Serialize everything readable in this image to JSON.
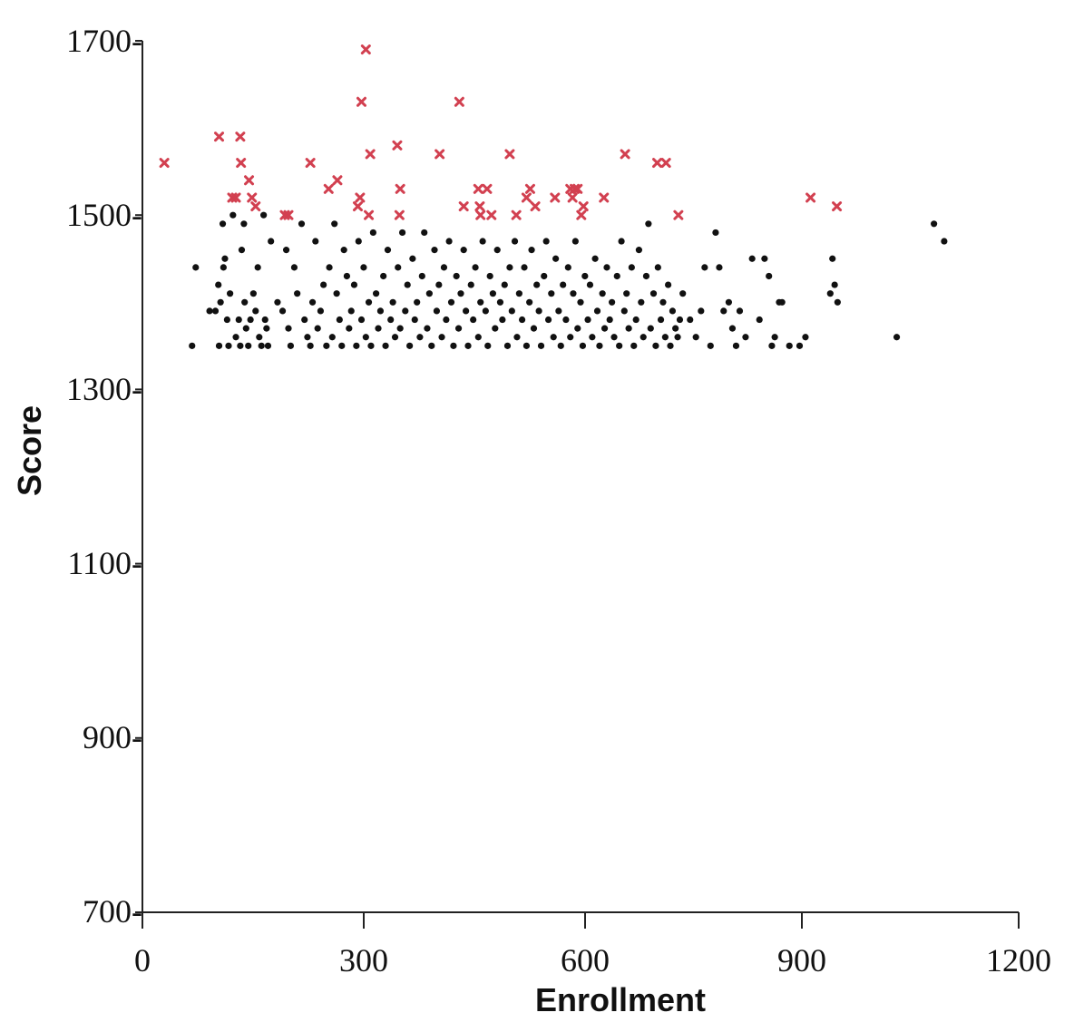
{
  "chart_data": {
    "type": "scatter",
    "title": "",
    "xlabel": "Enrollment",
    "ylabel": "Score",
    "xlim": [
      0,
      1200
    ],
    "ylim": [
      700,
      1700
    ],
    "x_ticks": [
      "0",
      "300",
      "600",
      "900",
      "1200"
    ],
    "y_ticks": [
      "700-",
      "900-",
      "1100-",
      "1300-",
      "1500-",
      "1700-"
    ],
    "grid": false,
    "legend": "none",
    "colors": {
      "above_threshold": "#d24050",
      "below_threshold": "#111111"
    },
    "series": [
      {
        "marker": "x",
        "color": "#d24050",
        "points": [
          [
            30,
            1560
          ],
          [
            105,
            1590
          ],
          [
            123,
            1520
          ],
          [
            128,
            1520
          ],
          [
            134,
            1590
          ],
          [
            135,
            1560
          ],
          [
            146,
            1540
          ],
          [
            150,
            1520
          ],
          [
            155,
            1510
          ],
          [
            195,
            1500
          ],
          [
            200,
            1500
          ],
          [
            230,
            1560
          ],
          [
            255,
            1530
          ],
          [
            267,
            1540
          ],
          [
            295,
            1510
          ],
          [
            298,
            1520
          ],
          [
            300,
            1630
          ],
          [
            306,
            1690
          ],
          [
            310,
            1500
          ],
          [
            312,
            1570
          ],
          [
            349,
            1580
          ],
          [
            352,
            1500
          ],
          [
            353,
            1530
          ],
          [
            407,
            1570
          ],
          [
            434,
            1630
          ],
          [
            440,
            1510
          ],
          [
            460,
            1530
          ],
          [
            462,
            1510
          ],
          [
            463,
            1500
          ],
          [
            472,
            1530
          ],
          [
            478,
            1500
          ],
          [
            503,
            1570
          ],
          [
            512,
            1500
          ],
          [
            526,
            1520
          ],
          [
            531,
            1530
          ],
          [
            538,
            1510
          ],
          [
            565,
            1520
          ],
          [
            586,
            1530
          ],
          [
            589,
            1520
          ],
          [
            592,
            1530
          ],
          [
            596,
            1530
          ],
          [
            601,
            1500
          ],
          [
            604,
            1510
          ],
          [
            632,
            1520
          ],
          [
            661,
            1570
          ],
          [
            705,
            1560
          ],
          [
            717,
            1560
          ],
          [
            734,
            1500
          ],
          [
            915,
            1520
          ],
          [
            951,
            1510
          ]
        ]
      },
      {
        "marker": "dot",
        "color": "#111111",
        "points": [
          [
            68,
            1350
          ],
          [
            73,
            1440
          ],
          [
            92,
            1390
          ],
          [
            100,
            1390
          ],
          [
            104,
            1420
          ],
          [
            105,
            1350
          ],
          [
            107,
            1400
          ],
          [
            110,
            1490
          ],
          [
            111,
            1440
          ],
          [
            113,
            1450
          ],
          [
            116,
            1380
          ],
          [
            118,
            1350
          ],
          [
            120,
            1410
          ],
          [
            124,
            1500
          ],
          [
            128,
            1360
          ],
          [
            132,
            1380
          ],
          [
            134,
            1350
          ],
          [
            136,
            1460
          ],
          [
            139,
            1490
          ],
          [
            140,
            1400
          ],
          [
            142,
            1370
          ],
          [
            145,
            1350
          ],
          [
            148,
            1380
          ],
          [
            152,
            1410
          ],
          [
            155,
            1390
          ],
          [
            158,
            1440
          ],
          [
            160,
            1360
          ],
          [
            163,
            1350
          ],
          [
            166,
            1500
          ],
          [
            168,
            1380
          ],
          [
            170,
            1370
          ],
          [
            172,
            1350
          ],
          [
            176,
            1470
          ],
          [
            185,
            1400
          ],
          [
            192,
            1390
          ],
          [
            197,
            1460
          ],
          [
            200,
            1370
          ],
          [
            203,
            1350
          ],
          [
            208,
            1440
          ],
          [
            212,
            1410
          ],
          [
            218,
            1490
          ],
          [
            222,
            1380
          ],
          [
            226,
            1360
          ],
          [
            230,
            1350
          ],
          [
            233,
            1400
          ],
          [
            237,
            1470
          ],
          [
            240,
            1370
          ],
          [
            244,
            1390
          ],
          [
            248,
            1420
          ],
          [
            252,
            1350
          ],
          [
            256,
            1440
          ],
          [
            260,
            1360
          ],
          [
            263,
            1490
          ],
          [
            266,
            1410
          ],
          [
            270,
            1380
          ],
          [
            273,
            1350
          ],
          [
            276,
            1460
          ],
          [
            280,
            1430
          ],
          [
            283,
            1370
          ],
          [
            286,
            1390
          ],
          [
            290,
            1420
          ],
          [
            293,
            1350
          ],
          [
            296,
            1470
          ],
          [
            300,
            1380
          ],
          [
            303,
            1440
          ],
          [
            306,
            1360
          ],
          [
            310,
            1400
          ],
          [
            313,
            1350
          ],
          [
            316,
            1480
          ],
          [
            320,
            1410
          ],
          [
            323,
            1370
          ],
          [
            326,
            1390
          ],
          [
            330,
            1430
          ],
          [
            333,
            1350
          ],
          [
            336,
            1460
          ],
          [
            340,
            1380
          ],
          [
            343,
            1400
          ],
          [
            346,
            1360
          ],
          [
            350,
            1440
          ],
          [
            353,
            1370
          ],
          [
            356,
            1480
          ],
          [
            360,
            1390
          ],
          [
            363,
            1420
          ],
          [
            366,
            1350
          ],
          [
            370,
            1450
          ],
          [
            373,
            1380
          ],
          [
            376,
            1400
          ],
          [
            380,
            1360
          ],
          [
            383,
            1430
          ],
          [
            386,
            1480
          ],
          [
            390,
            1370
          ],
          [
            393,
            1410
          ],
          [
            396,
            1350
          ],
          [
            400,
            1460
          ],
          [
            403,
            1390
          ],
          [
            406,
            1420
          ],
          [
            410,
            1360
          ],
          [
            413,
            1440
          ],
          [
            416,
            1380
          ],
          [
            420,
            1470
          ],
          [
            423,
            1400
          ],
          [
            426,
            1350
          ],
          [
            430,
            1430
          ],
          [
            433,
            1370
          ],
          [
            436,
            1410
          ],
          [
            440,
            1460
          ],
          [
            443,
            1390
          ],
          [
            446,
            1350
          ],
          [
            450,
            1420
          ],
          [
            453,
            1380
          ],
          [
            456,
            1440
          ],
          [
            460,
            1360
          ],
          [
            463,
            1400
          ],
          [
            466,
            1470
          ],
          [
            470,
            1390
          ],
          [
            473,
            1350
          ],
          [
            476,
            1430
          ],
          [
            480,
            1410
          ],
          [
            483,
            1370
          ],
          [
            486,
            1460
          ],
          [
            490,
            1400
          ],
          [
            493,
            1380
          ],
          [
            496,
            1420
          ],
          [
            500,
            1350
          ],
          [
            503,
            1440
          ],
          [
            506,
            1390
          ],
          [
            510,
            1470
          ],
          [
            513,
            1360
          ],
          [
            516,
            1410
          ],
          [
            520,
            1380
          ],
          [
            523,
            1440
          ],
          [
            526,
            1350
          ],
          [
            530,
            1400
          ],
          [
            533,
            1460
          ],
          [
            536,
            1370
          ],
          [
            540,
            1420
          ],
          [
            543,
            1390
          ],
          [
            546,
            1350
          ],
          [
            550,
            1430
          ],
          [
            553,
            1470
          ],
          [
            556,
            1380
          ],
          [
            560,
            1410
          ],
          [
            563,
            1360
          ],
          [
            566,
            1450
          ],
          [
            570,
            1390
          ],
          [
            573,
            1350
          ],
          [
            576,
            1420
          ],
          [
            580,
            1380
          ],
          [
            583,
            1440
          ],
          [
            586,
            1360
          ],
          [
            590,
            1410
          ],
          [
            593,
            1470
          ],
          [
            596,
            1370
          ],
          [
            600,
            1400
          ],
          [
            603,
            1350
          ],
          [
            606,
            1430
          ],
          [
            610,
            1380
          ],
          [
            613,
            1420
          ],
          [
            616,
            1360
          ],
          [
            620,
            1450
          ],
          [
            623,
            1390
          ],
          [
            626,
            1350
          ],
          [
            630,
            1410
          ],
          [
            633,
            1370
          ],
          [
            636,
            1440
          ],
          [
            640,
            1380
          ],
          [
            643,
            1400
          ],
          [
            646,
            1360
          ],
          [
            650,
            1430
          ],
          [
            653,
            1350
          ],
          [
            656,
            1470
          ],
          [
            660,
            1390
          ],
          [
            663,
            1410
          ],
          [
            666,
            1370
          ],
          [
            670,
            1440
          ],
          [
            673,
            1350
          ],
          [
            676,
            1380
          ],
          [
            680,
            1460
          ],
          [
            683,
            1400
          ],
          [
            686,
            1360
          ],
          [
            690,
            1430
          ],
          [
            693,
            1490
          ],
          [
            696,
            1370
          ],
          [
            700,
            1410
          ],
          [
            703,
            1350
          ],
          [
            706,
            1440
          ],
          [
            710,
            1380
          ],
          [
            713,
            1400
          ],
          [
            716,
            1360
          ],
          [
            720,
            1420
          ],
          [
            723,
            1350
          ],
          [
            726,
            1390
          ],
          [
            730,
            1370
          ],
          [
            733,
            1360
          ],
          [
            736,
            1380
          ],
          [
            740,
            1410
          ],
          [
            750,
            1380
          ],
          [
            758,
            1360
          ],
          [
            765,
            1390
          ],
          [
            770,
            1440
          ],
          [
            778,
            1350
          ],
          [
            785,
            1480
          ],
          [
            790,
            1440
          ],
          [
            796,
            1390
          ],
          [
            803,
            1400
          ],
          [
            808,
            1370
          ],
          [
            813,
            1350
          ],
          [
            818,
            1390
          ],
          [
            826,
            1360
          ],
          [
            835,
            1450
          ],
          [
            845,
            1380
          ],
          [
            852,
            1450
          ],
          [
            858,
            1430
          ],
          [
            862,
            1350
          ],
          [
            866,
            1360
          ],
          [
            872,
            1400
          ],
          [
            876,
            1400
          ],
          [
            886,
            1350
          ],
          [
            900,
            1350
          ],
          [
            908,
            1360
          ],
          [
            942,
            1410
          ],
          [
            945,
            1450
          ],
          [
            948,
            1420
          ],
          [
            952,
            1400
          ],
          [
            1033,
            1360
          ],
          [
            1084,
            1490
          ],
          [
            1098,
            1470
          ]
        ]
      }
    ]
  }
}
